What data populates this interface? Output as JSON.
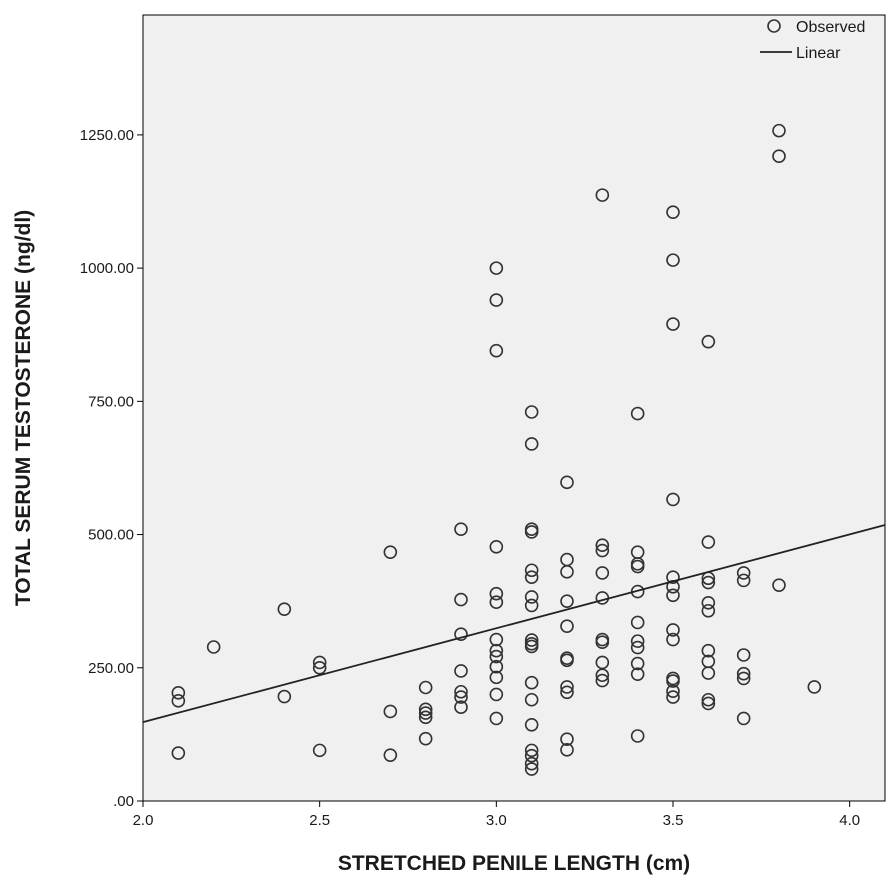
{
  "chart_data": {
    "type": "scatter",
    "xlabel": "STRETCHED PENILE LENGTH (cm)",
    "ylabel": "TOTAL SERUM TESTOSTERONE (ng/dl)",
    "xlim": [
      2.0,
      4.1
    ],
    "ylim": [
      0,
      1475
    ],
    "x_ticks": [
      2.0,
      2.5,
      3.0,
      3.5,
      4.0
    ],
    "x_tick_labels": [
      "2.0",
      "2.5",
      "3.0",
      "3.5",
      "4.0"
    ],
    "y_ticks": [
      0,
      250,
      500,
      750,
      1000,
      1250
    ],
    "y_tick_labels": [
      ".00",
      "250.00",
      "500.00",
      "750.00",
      "1000.00",
      "1250.00"
    ],
    "grid": false,
    "legend_position": "top-right",
    "plot_background": "#f0f0f0",
    "marker_color": "#333333",
    "line_color": "#222222",
    "series": [
      {
        "name": "Observed",
        "type": "scatter",
        "marker": "open-circle",
        "points": [
          [
            2.1,
            203
          ],
          [
            2.1,
            188
          ],
          [
            2.1,
            90
          ],
          [
            2.2,
            289
          ],
          [
            2.4,
            360
          ],
          [
            2.4,
            196
          ],
          [
            2.5,
            260
          ],
          [
            2.5,
            250
          ],
          [
            2.5,
            95
          ],
          [
            2.7,
            467
          ],
          [
            2.7,
            168
          ],
          [
            2.7,
            86
          ],
          [
            2.8,
            213
          ],
          [
            2.8,
            172
          ],
          [
            2.8,
            165
          ],
          [
            2.8,
            157
          ],
          [
            2.8,
            117
          ],
          [
            2.9,
            510
          ],
          [
            2.9,
            378
          ],
          [
            2.9,
            313
          ],
          [
            2.9,
            244
          ],
          [
            2.9,
            205
          ],
          [
            2.9,
            195
          ],
          [
            2.9,
            176
          ],
          [
            3.0,
            1000
          ],
          [
            3.0,
            940
          ],
          [
            3.0,
            845
          ],
          [
            3.0,
            477
          ],
          [
            3.0,
            389
          ],
          [
            3.0,
            373
          ],
          [
            3.0,
            303
          ],
          [
            3.0,
            282
          ],
          [
            3.0,
            271
          ],
          [
            3.0,
            252
          ],
          [
            3.0,
            232
          ],
          [
            3.0,
            200
          ],
          [
            3.0,
            155
          ],
          [
            3.1,
            730
          ],
          [
            3.1,
            670
          ],
          [
            3.1,
            510
          ],
          [
            3.1,
            505
          ],
          [
            3.1,
            433
          ],
          [
            3.1,
            420
          ],
          [
            3.1,
            383
          ],
          [
            3.1,
            367
          ],
          [
            3.1,
            302
          ],
          [
            3.1,
            295
          ],
          [
            3.1,
            290
          ],
          [
            3.1,
            222
          ],
          [
            3.1,
            190
          ],
          [
            3.1,
            143
          ],
          [
            3.1,
            95
          ],
          [
            3.1,
            85
          ],
          [
            3.1,
            70
          ],
          [
            3.1,
            60
          ],
          [
            3.2,
            598
          ],
          [
            3.2,
            453
          ],
          [
            3.2,
            430
          ],
          [
            3.2,
            375
          ],
          [
            3.2,
            328
          ],
          [
            3.2,
            268
          ],
          [
            3.2,
            264
          ],
          [
            3.2,
            214
          ],
          [
            3.2,
            204
          ],
          [
            3.2,
            116
          ],
          [
            3.2,
            96
          ],
          [
            3.3,
            1137
          ],
          [
            3.3,
            480
          ],
          [
            3.3,
            470
          ],
          [
            3.3,
            428
          ],
          [
            3.3,
            381
          ],
          [
            3.3,
            303
          ],
          [
            3.3,
            298
          ],
          [
            3.3,
            260
          ],
          [
            3.3,
            236
          ],
          [
            3.3,
            226
          ],
          [
            3.4,
            727
          ],
          [
            3.4,
            467
          ],
          [
            3.4,
            445
          ],
          [
            3.4,
            440
          ],
          [
            3.4,
            393
          ],
          [
            3.4,
            335
          ],
          [
            3.4,
            300
          ],
          [
            3.4,
            288
          ],
          [
            3.4,
            258
          ],
          [
            3.4,
            238
          ],
          [
            3.4,
            122
          ],
          [
            3.5,
            1105
          ],
          [
            3.5,
            1015
          ],
          [
            3.5,
            895
          ],
          [
            3.5,
            566
          ],
          [
            3.5,
            420
          ],
          [
            3.5,
            402
          ],
          [
            3.5,
            386
          ],
          [
            3.5,
            321
          ],
          [
            3.5,
            303
          ],
          [
            3.5,
            230
          ],
          [
            3.5,
            225
          ],
          [
            3.5,
            206
          ],
          [
            3.5,
            195
          ],
          [
            3.6,
            862
          ],
          [
            3.6,
            486
          ],
          [
            3.6,
            418
          ],
          [
            3.6,
            410
          ],
          [
            3.6,
            372
          ],
          [
            3.6,
            357
          ],
          [
            3.6,
            282
          ],
          [
            3.6,
            262
          ],
          [
            3.6,
            240
          ],
          [
            3.6,
            190
          ],
          [
            3.6,
            183
          ],
          [
            3.7,
            428
          ],
          [
            3.7,
            414
          ],
          [
            3.7,
            274
          ],
          [
            3.7,
            239
          ],
          [
            3.7,
            230
          ],
          [
            3.7,
            155
          ],
          [
            3.8,
            1258
          ],
          [
            3.8,
            1210
          ],
          [
            3.8,
            405
          ],
          [
            3.9,
            214
          ]
        ]
      },
      {
        "name": "Linear",
        "type": "line",
        "points": [
          [
            2.0,
            148
          ],
          [
            4.1,
            518
          ]
        ]
      }
    ]
  }
}
